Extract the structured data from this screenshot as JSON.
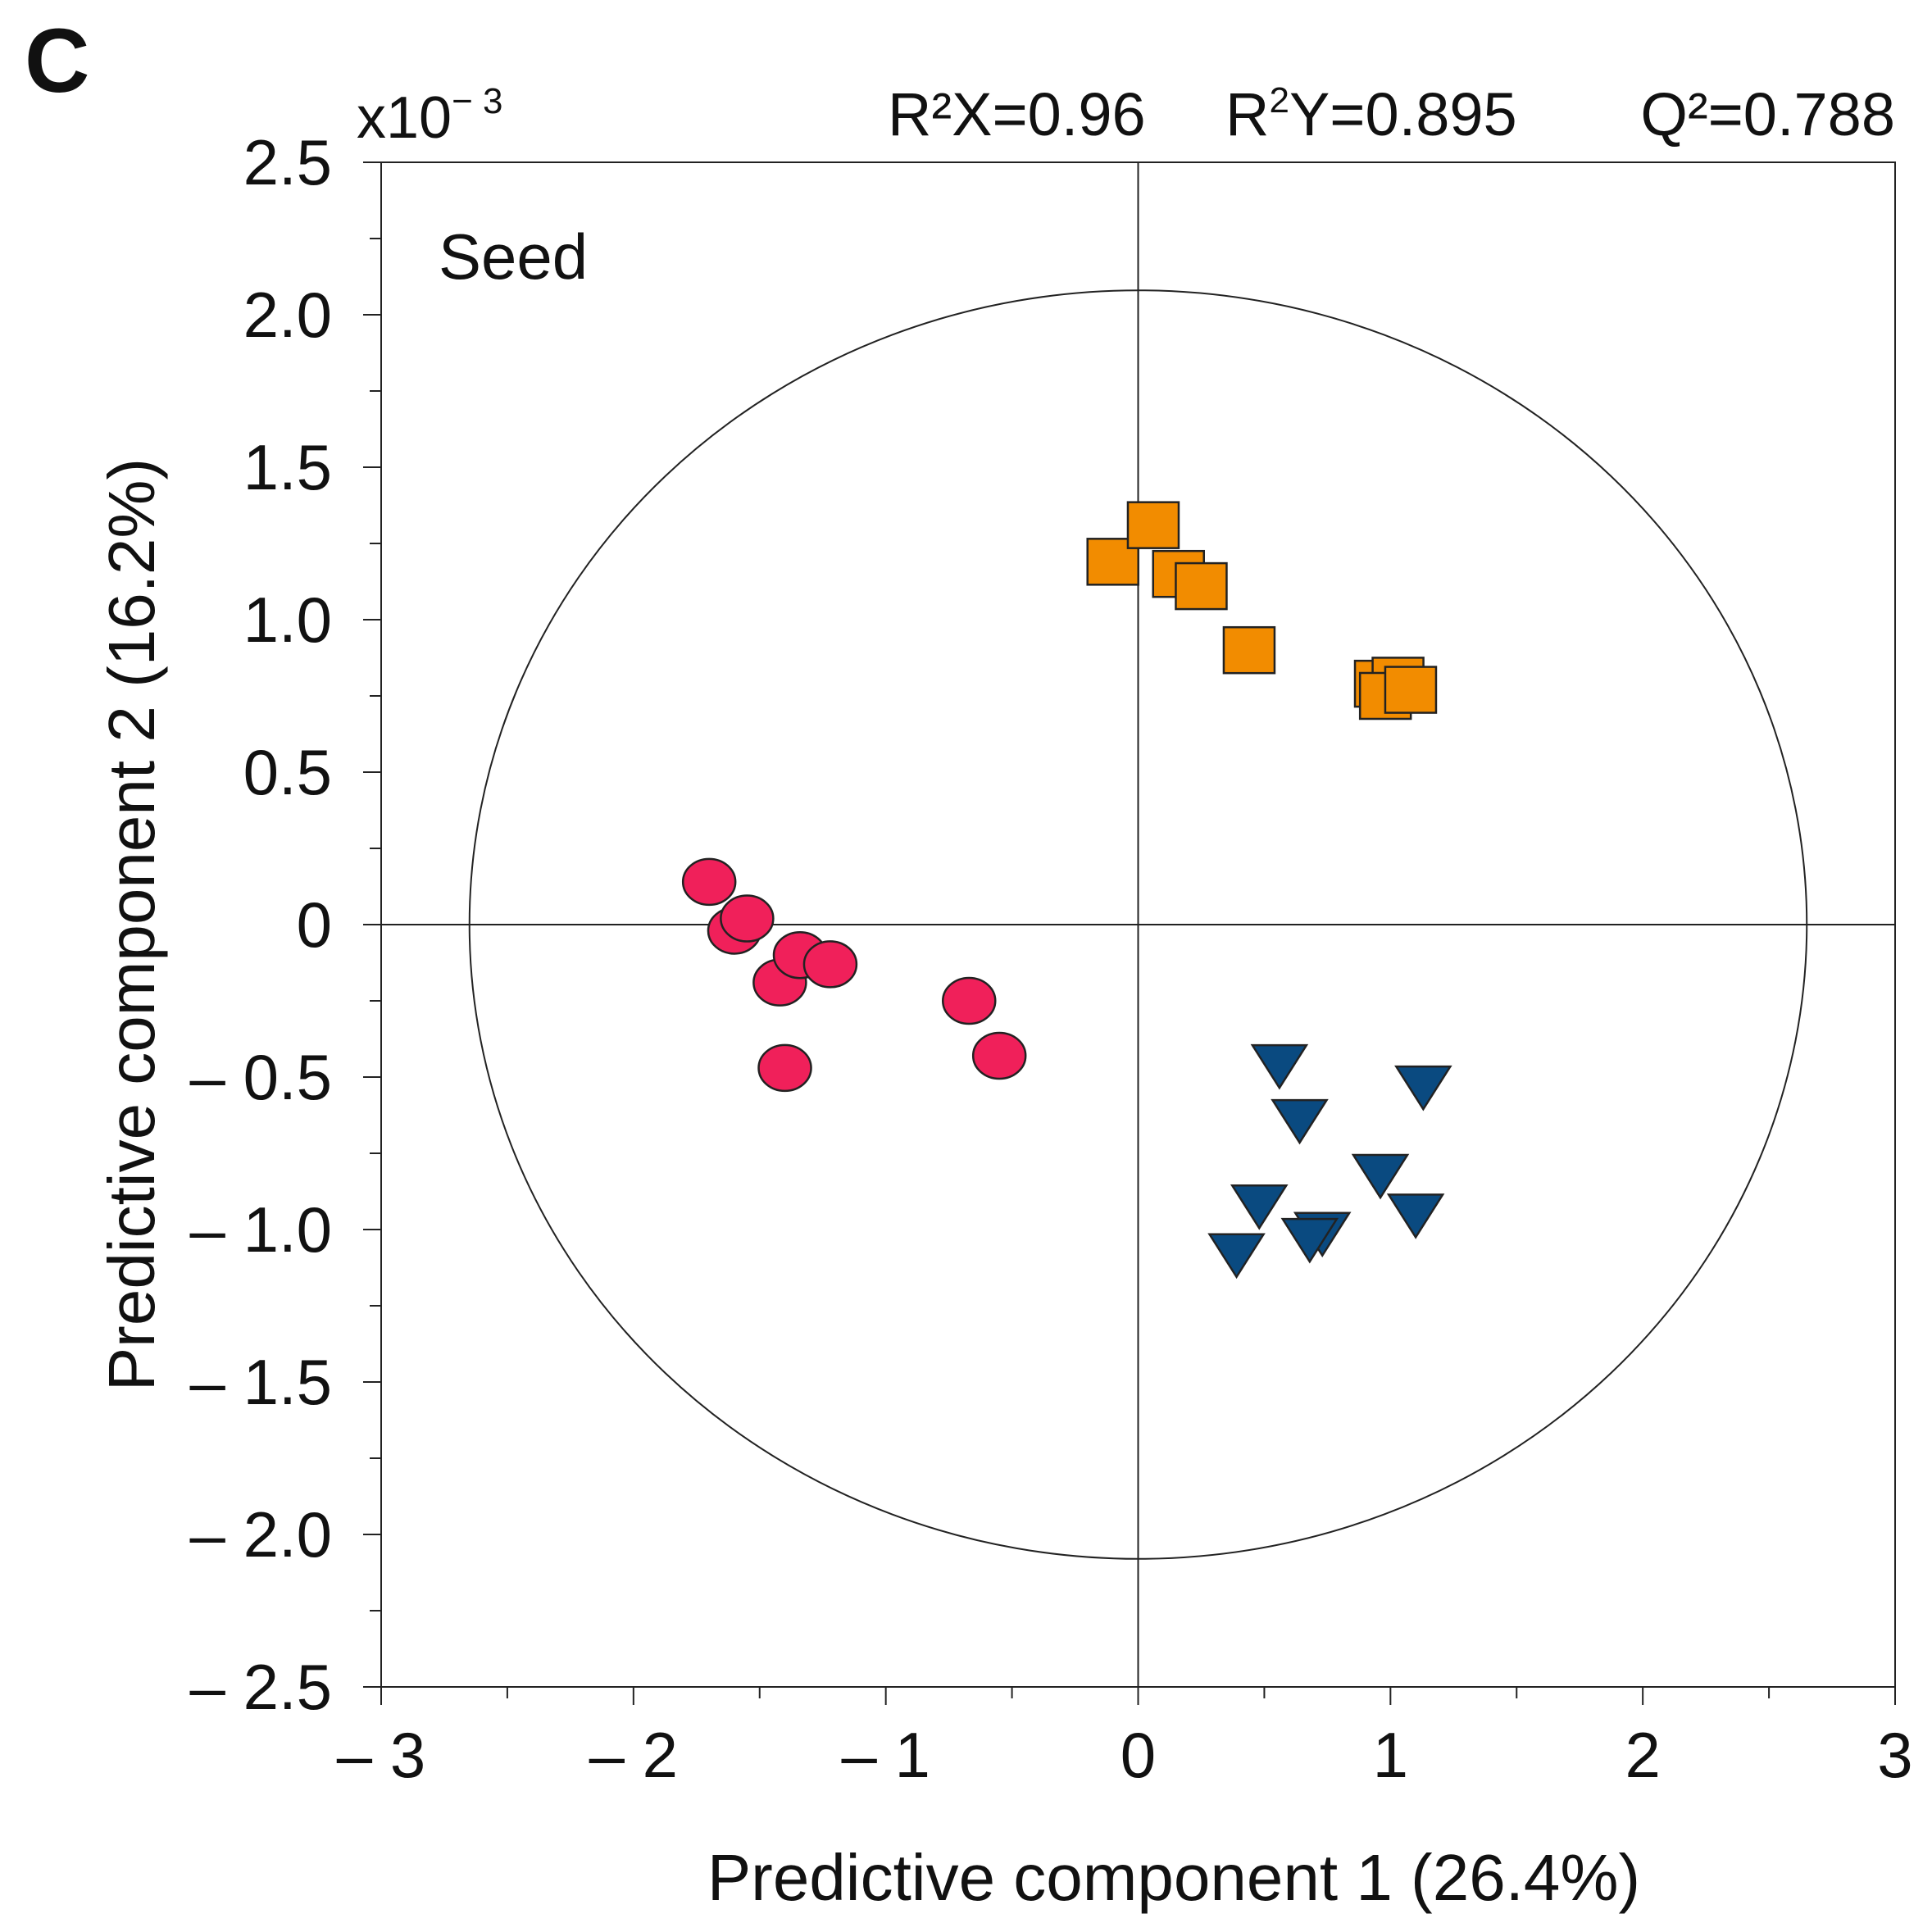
{
  "chart_data": {
    "type": "scatter",
    "panel_label": "C",
    "scale_label": "x10",
    "scale_exponent": "− 3",
    "stats": {
      "r2x_label": "R²X=0.96",
      "r2y_prefix": "R",
      "r2y_sup": "2",
      "r2y_suffix": "Y=0.895",
      "q2_label": "Q²=0.788"
    },
    "annotation": "Seed",
    "xlabel": "Predictive component 1 (26.4%)",
    "ylabel": "Predictive component 2 (16.2%)",
    "xlim": [
      -3,
      3
    ],
    "ylim": [
      -2.5,
      2.5
    ],
    "x_ticks": [
      {
        "value": -3,
        "label": "– 3"
      },
      {
        "value": -2,
        "label": "– 2"
      },
      {
        "value": -1,
        "label": "– 1"
      },
      {
        "value": 0,
        "label": "0"
      },
      {
        "value": 1,
        "label": "1"
      },
      {
        "value": 2,
        "label": "2"
      },
      {
        "value": 3,
        "label": "3"
      }
    ],
    "y_ticks": [
      {
        "value": 2.5,
        "label": "2.5"
      },
      {
        "value": 2.0,
        "label": "2.0"
      },
      {
        "value": 1.5,
        "label": "1.5"
      },
      {
        "value": 1.0,
        "label": "1.0"
      },
      {
        "value": 0.5,
        "label": "0.5"
      },
      {
        "value": 0,
        "label": "0"
      },
      {
        "value": -0.5,
        "label": "– 0.5"
      },
      {
        "value": -1.0,
        "label": "– 1.0"
      },
      {
        "value": -1.5,
        "label": "– 1.5"
      },
      {
        "value": -2.0,
        "label": "– 2.0"
      },
      {
        "value": -2.5,
        "label": "– 2.5"
      }
    ],
    "ellipse": {
      "rx": 2.65,
      "ry": 2.08
    },
    "series": [
      {
        "marker": "square",
        "color": "#F28C00",
        "points": [
          {
            "x": -0.1,
            "y": 1.19
          },
          {
            "x": 0.06,
            "y": 1.31
          },
          {
            "x": 0.16,
            "y": 1.15
          },
          {
            "x": 0.25,
            "y": 1.11
          },
          {
            "x": 0.44,
            "y": 0.9
          },
          {
            "x": 0.96,
            "y": 0.79
          },
          {
            "x": 1.03,
            "y": 0.8
          },
          {
            "x": 0.98,
            "y": 0.75
          },
          {
            "x": 1.08,
            "y": 0.77
          }
        ]
      },
      {
        "marker": "circle",
        "color": "#F0205A",
        "points": [
          {
            "x": -1.7,
            "y": 0.14
          },
          {
            "x": -1.6,
            "y": -0.02
          },
          {
            "x": -1.55,
            "y": 0.02
          },
          {
            "x": -1.42,
            "y": -0.19
          },
          {
            "x": -1.34,
            "y": -0.1
          },
          {
            "x": -1.22,
            "y": -0.13
          },
          {
            "x": -1.4,
            "y": -0.47
          },
          {
            "x": -0.67,
            "y": -0.25
          },
          {
            "x": -0.55,
            "y": -0.43
          }
        ]
      },
      {
        "marker": "triangle-down",
        "color": "#0A4A80",
        "points": [
          {
            "x": 0.56,
            "y": -0.46
          },
          {
            "x": 1.13,
            "y": -0.53
          },
          {
            "x": 0.64,
            "y": -0.64
          },
          {
            "x": 0.96,
            "y": -0.82
          },
          {
            "x": 0.48,
            "y": -0.92
          },
          {
            "x": 1.1,
            "y": -0.95
          },
          {
            "x": 0.73,
            "y": -1.01
          },
          {
            "x": 0.68,
            "y": -1.03
          },
          {
            "x": 0.39,
            "y": -1.08
          }
        ]
      }
    ]
  }
}
